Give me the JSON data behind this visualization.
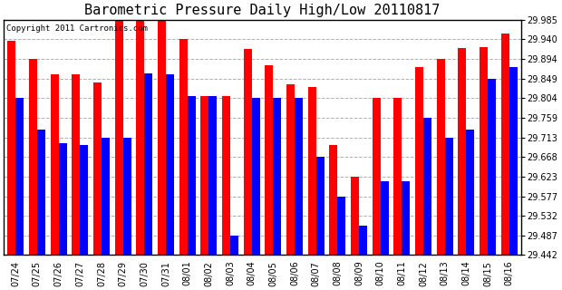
{
  "title": "Barometric Pressure Daily High/Low 20110817",
  "copyright": "Copyright 2011 Cartronics.com",
  "dates": [
    "07/24",
    "07/25",
    "07/26",
    "07/27",
    "07/28",
    "07/29",
    "07/30",
    "07/31",
    "08/01",
    "08/02",
    "08/03",
    "08/04",
    "08/05",
    "08/06",
    "08/07",
    "08/08",
    "08/09",
    "08/10",
    "08/11",
    "08/12",
    "08/13",
    "08/14",
    "08/15",
    "08/16"
  ],
  "highs": [
    29.937,
    29.894,
    29.858,
    29.858,
    29.84,
    29.985,
    29.985,
    29.985,
    29.94,
    29.808,
    29.808,
    29.917,
    29.88,
    29.835,
    29.83,
    29.695,
    29.623,
    29.804,
    29.804,
    29.875,
    29.894,
    29.92,
    29.921,
    29.953
  ],
  "lows": [
    29.804,
    29.731,
    29.7,
    29.695,
    29.713,
    29.713,
    29.862,
    29.858,
    29.808,
    29.808,
    29.487,
    29.804,
    29.804,
    29.804,
    29.668,
    29.577,
    29.51,
    29.613,
    29.613,
    29.759,
    29.713,
    29.731,
    29.849,
    29.876
  ],
  "ymin": 29.442,
  "ymax": 29.985,
  "yticks": [
    29.442,
    29.487,
    29.532,
    29.577,
    29.623,
    29.668,
    29.713,
    29.759,
    29.804,
    29.849,
    29.894,
    29.94,
    29.985
  ],
  "bar_color_high": "#ff0000",
  "bar_color_low": "#0000ff",
  "background_color": "#ffffff",
  "grid_color": "#b0b0b0",
  "title_fontsize": 11,
  "copyright_fontsize": 6.5
}
